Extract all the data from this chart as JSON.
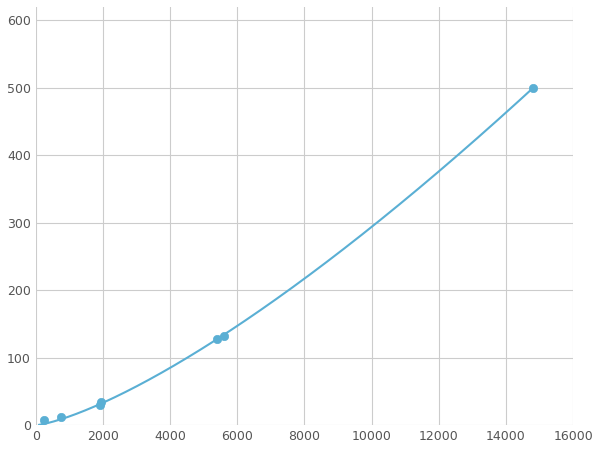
{
  "scatter_x": [
    250,
    750,
    1900,
    1950,
    5400,
    5600,
    14800
  ],
  "scatter_y": [
    7,
    12,
    30,
    35,
    128,
    132,
    500
  ],
  "line_color": "#5aafd4",
  "marker_color": "#5aafd4",
  "xlim": [
    0,
    16000
  ],
  "ylim": [
    0,
    620
  ],
  "xticks": [
    0,
    2000,
    4000,
    6000,
    8000,
    10000,
    12000,
    14000,
    16000
  ],
  "yticks": [
    0,
    100,
    200,
    300,
    400,
    500,
    600
  ],
  "grid": true,
  "background_color": "#ffffff",
  "marker_size": 36,
  "line_width": 1.5,
  "power_a": 2.5,
  "power_b": 0.62
}
